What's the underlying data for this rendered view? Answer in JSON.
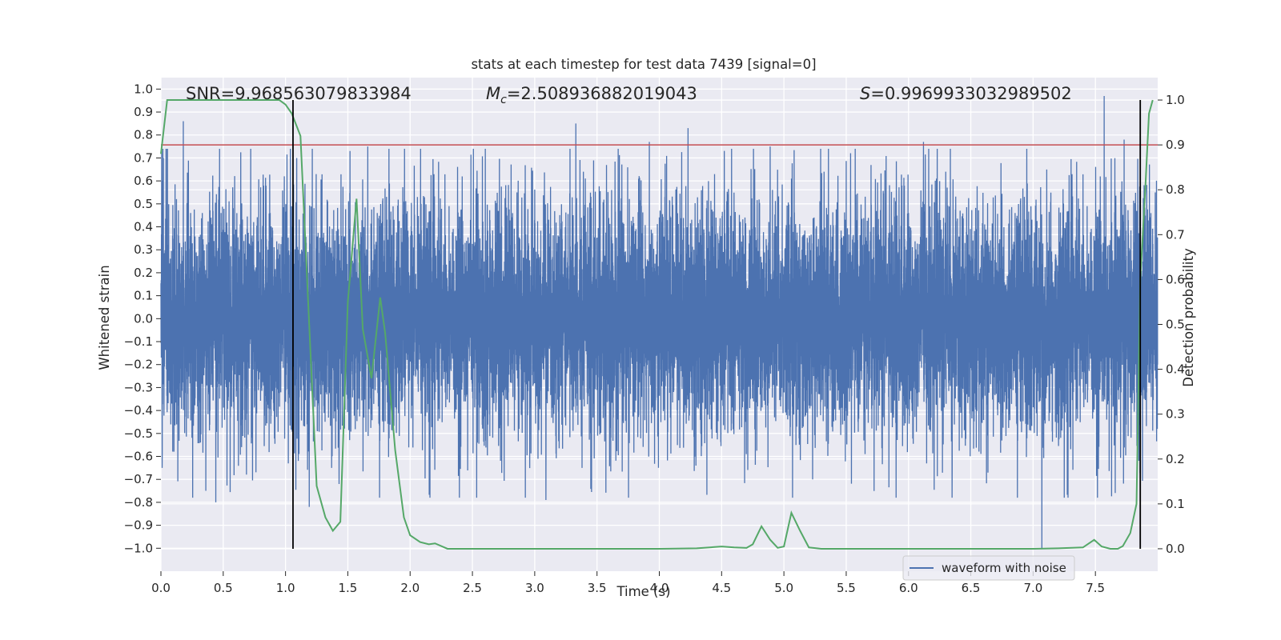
{
  "chart_data": {
    "type": "line",
    "title": "stats at each timestep for test data 7439 [signal=0]",
    "xlabel": "Time (s)",
    "ylabel": "Whitened strain",
    "ylabel_right": "Detection probability",
    "xlim": [
      0.0,
      8.0
    ],
    "ylim": [
      -1.1,
      1.05
    ],
    "ylim_right": [
      -0.05,
      1.05
    ],
    "x_ticks": [
      0.0,
      0.5,
      1.0,
      1.5,
      2.0,
      2.5,
      3.0,
      3.5,
      4.0,
      4.5,
      5.0,
      5.5,
      6.0,
      6.5,
      7.0,
      7.5
    ],
    "y_ticks": [
      1.0,
      0.9,
      0.8,
      0.7,
      0.6,
      0.5,
      0.4,
      0.3,
      0.2,
      0.1,
      0.0,
      -0.1,
      -0.2,
      -0.3,
      -0.4,
      -0.5,
      -0.6,
      -0.7,
      -0.8,
      -0.9,
      -1.0
    ],
    "y_ticks_right": [
      1.0,
      0.9,
      0.8,
      0.7,
      0.6,
      0.5,
      0.4,
      0.3,
      0.2,
      0.1,
      0.0
    ],
    "grid": true,
    "legend_position": "lower-right",
    "annotations": {
      "snr": "SNR=9.968563079833984",
      "mc_symbol": "M",
      "mc_sub": "c",
      "mc_value": "=2.508936882019043",
      "s_symbol": "S",
      "s_value": "=0.9969933032989502"
    },
    "threshold_right": 0.9,
    "vertical_lines_x": [
      1.06,
      7.86
    ],
    "series": [
      {
        "name": "waveform with noise",
        "axis": "left",
        "color": "#4c72b0",
        "sample_rate_hz": 1024,
        "x_start": 0.0,
        "x_end": 8.0,
        "typical_amplitude": 0.35,
        "peaks": [
          {
            "x": 0.01,
            "y": -0.65
          },
          {
            "x": 0.02,
            "y": 0.7
          },
          {
            "x": 0.18,
            "y": 0.86
          },
          {
            "x": 0.44,
            "y": -0.8
          },
          {
            "x": 0.99,
            "y": 0.62
          },
          {
            "x": 1.09,
            "y": 0.7
          },
          {
            "x": 1.19,
            "y": -0.82
          },
          {
            "x": 1.37,
            "y": -0.65
          },
          {
            "x": 1.43,
            "y": -0.72
          },
          {
            "x": 1.66,
            "y": 0.75
          },
          {
            "x": 3.09,
            "y": -0.79
          },
          {
            "x": 3.33,
            "y": 0.85
          },
          {
            "x": 3.92,
            "y": 0.77
          },
          {
            "x": 4.23,
            "y": 0.83
          },
          {
            "x": 4.89,
            "y": 0.75
          },
          {
            "x": 5.23,
            "y": -0.7
          },
          {
            "x": 5.9,
            "y": -0.78
          },
          {
            "x": 6.12,
            "y": 0.77
          },
          {
            "x": 6.35,
            "y": -0.78
          },
          {
            "x": 7.07,
            "y": -1.0
          },
          {
            "x": 7.25,
            "y": -0.78
          },
          {
            "x": 7.57,
            "y": 0.97
          },
          {
            "x": 7.73,
            "y": 0.78
          }
        ]
      },
      {
        "axis": "right",
        "color": "#55a868",
        "x": [
          0.0,
          0.05,
          0.1,
          0.2,
          0.4,
          0.6,
          0.8,
          0.9,
          0.95,
          1.0,
          1.05,
          1.12,
          1.25,
          1.32,
          1.38,
          1.44,
          1.5,
          1.57,
          1.62,
          1.69,
          1.76,
          1.8,
          1.88,
          1.95,
          2.0,
          2.08,
          2.15,
          2.2,
          2.3,
          2.5,
          3.0,
          3.5,
          4.0,
          4.3,
          4.5,
          4.6,
          4.7,
          4.75,
          4.82,
          4.89,
          4.95,
          5.0,
          5.06,
          5.13,
          5.2,
          5.3,
          5.5,
          6.0,
          6.5,
          7.0,
          7.2,
          7.4,
          7.49,
          7.55,
          7.62,
          7.68,
          7.72,
          7.78,
          7.83,
          7.86,
          7.9,
          7.93,
          7.96
        ],
        "values": [
          0.88,
          1.0,
          1.0,
          1.0,
          1.0,
          1.0,
          1.0,
          1.0,
          1.0,
          0.99,
          0.97,
          0.92,
          0.14,
          0.07,
          0.04,
          0.06,
          0.55,
          0.78,
          0.49,
          0.38,
          0.56,
          0.48,
          0.22,
          0.07,
          0.03,
          0.015,
          0.01,
          0.012,
          0.0,
          0.0,
          0.0,
          0.0,
          0.0,
          0.001,
          0.005,
          0.003,
          0.002,
          0.01,
          0.05,
          0.02,
          0.002,
          0.005,
          0.08,
          0.04,
          0.003,
          0.0,
          0.0,
          0.0,
          0.0,
          0.0,
          0.001,
          0.003,
          0.02,
          0.005,
          0.0,
          0.0,
          0.006,
          0.035,
          0.1,
          0.6,
          0.8,
          0.97,
          1.0
        ]
      }
    ]
  }
}
